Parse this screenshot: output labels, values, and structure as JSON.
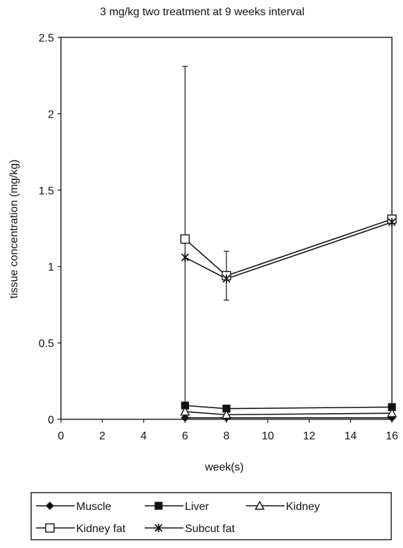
{
  "chart_data": {
    "type": "line",
    "title": "3 mg/kg two treatment at 9 weeks interval",
    "xlabel": "week(s)",
    "ylabel": "tissue concentration (mg/kg)",
    "x_ticks": [
      "0",
      "2",
      "4",
      "6",
      "8",
      "10",
      "12",
      "14",
      "16"
    ],
    "y_ticks": [
      "0",
      "0.5",
      "1",
      "1.5",
      "2",
      "2.5"
    ],
    "xlim": [
      0,
      16
    ],
    "ylim": [
      0,
      2.5
    ],
    "grid": false,
    "legend_position": "bottom",
    "x": [
      6,
      8,
      16
    ],
    "series": [
      {
        "name": "Muscle",
        "marker": "filled-diamond",
        "values": [
          0.01,
          0.01,
          0.01
        ]
      },
      {
        "name": "Liver",
        "marker": "filled-square",
        "values": [
          0.09,
          0.07,
          0.08
        ]
      },
      {
        "name": "Kidney",
        "marker": "open-triangle",
        "values": [
          0.05,
          0.03,
          0.04
        ]
      },
      {
        "name": "Kidney fat",
        "marker": "open-square",
        "values": [
          1.18,
          0.94,
          1.31
        ],
        "error": [
          1.13,
          0.16,
          0
        ]
      },
      {
        "name": "Subcut fat",
        "marker": "star",
        "values": [
          1.06,
          0.92,
          1.29
        ]
      }
    ]
  }
}
